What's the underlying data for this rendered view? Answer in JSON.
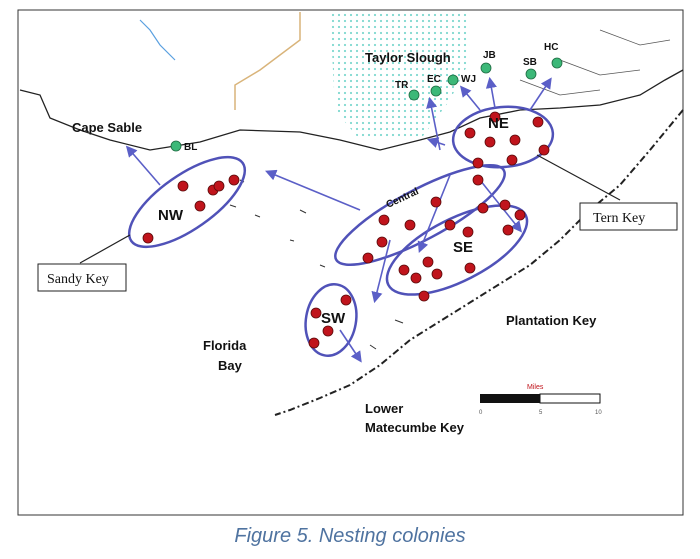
{
  "map": {
    "labels": {
      "taylor_slough": "Taylor Slough",
      "cape_sable": "Cape Sable",
      "florida_bay": [
        "Florida",
        "Bay"
      ],
      "plantation_key": "Plantation Key",
      "lower_matecumbe_key": [
        "Lower",
        "Matecumbe Key"
      ],
      "tern_key": "Tern Key",
      "sandy_key": "Sandy Key"
    },
    "stations": [
      "JB",
      "HC",
      "SB",
      "TR",
      "EC",
      "WJ",
      "BL"
    ],
    "regions": [
      "NE",
      "NW",
      "Central",
      "SE",
      "SW"
    ],
    "scale_bar": {
      "title": "Miles",
      "ticks": [
        "0",
        "5",
        "10"
      ]
    }
  },
  "caption": "Figure 5. Nesting colonies"
}
